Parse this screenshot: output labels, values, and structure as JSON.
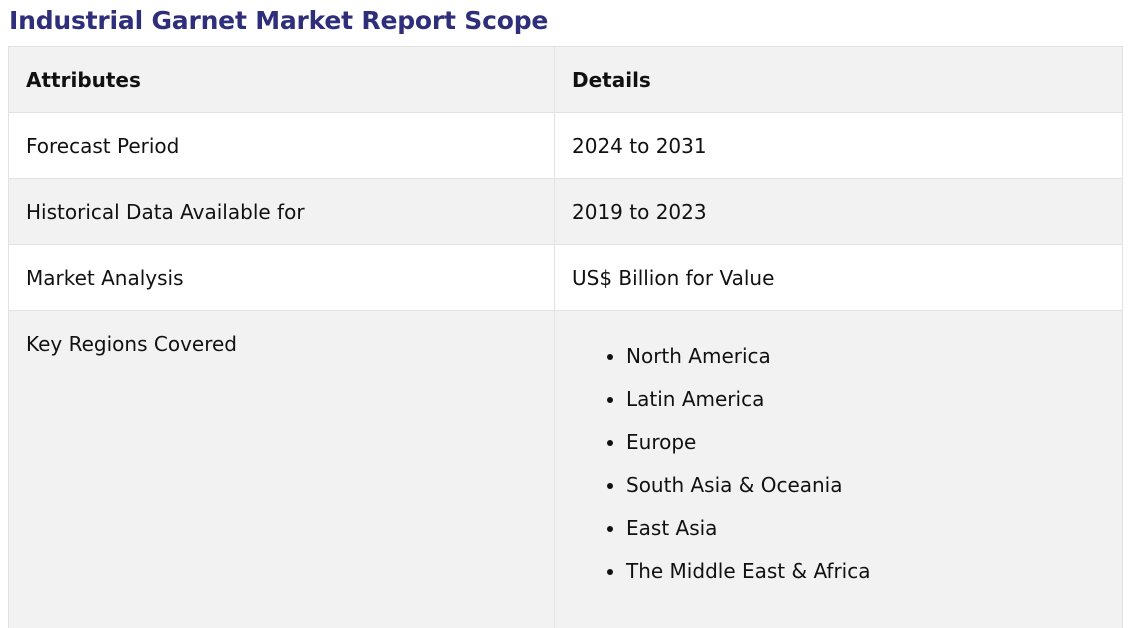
{
  "title": "Industrial Garnet Market Report Scope",
  "table": {
    "headers": [
      "Attributes",
      "Details"
    ],
    "rows": [
      {
        "attribute": "Forecast Period",
        "detail": "2024 to 2031"
      },
      {
        "attribute": "Historical Data Available for",
        "detail": "2019 to 2023"
      },
      {
        "attribute": "Market Analysis",
        "detail": "US$ Billion for Value"
      }
    ],
    "regions_row": {
      "attribute": "Key Regions Covered",
      "items": [
        "North America",
        "Latin America",
        "Europe",
        "South Asia & Oceania",
        "East Asia",
        "The Middle East & Africa"
      ]
    }
  }
}
